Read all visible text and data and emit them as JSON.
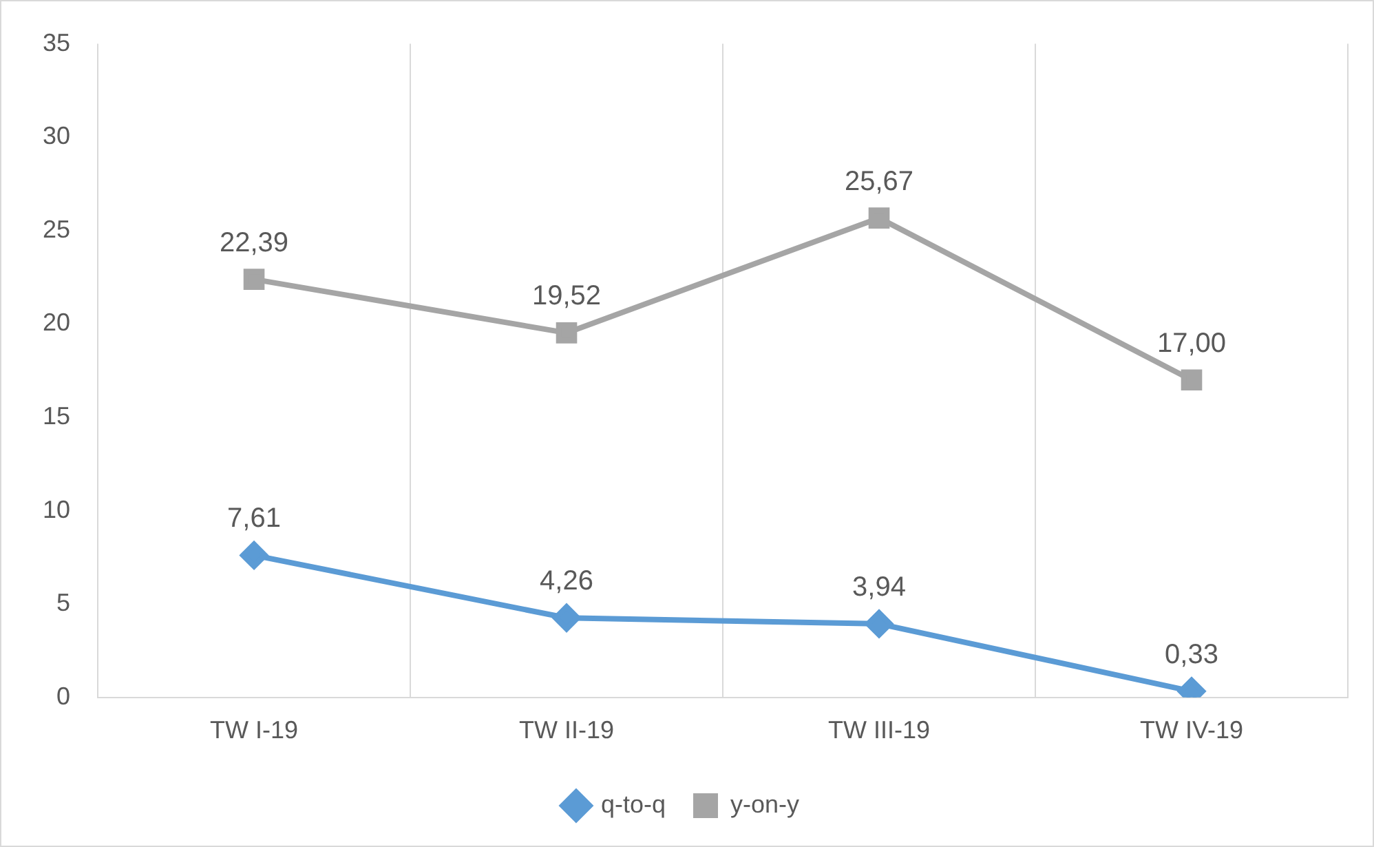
{
  "chart_data": {
    "type": "line",
    "categories": [
      "TW I-19",
      "TW II-19",
      "TW III-19",
      "TW IV-19"
    ],
    "series": [
      {
        "name": "q-to-q",
        "color": "#5b9bd5",
        "marker": "diamond",
        "values": [
          7.61,
          4.26,
          3.94,
          0.33
        ],
        "value_labels": [
          "7,61",
          "4,26",
          "3,94",
          "0,33"
        ]
      },
      {
        "name": "y-on-y",
        "color": "#a5a5a5",
        "marker": "square",
        "values": [
          22.39,
          19.52,
          25.67,
          17.0
        ],
        "value_labels": [
          "22,39",
          "19,52",
          "25,67",
          "17,00"
        ]
      }
    ],
    "ylim": [
      0,
      35
    ],
    "yticks": [
      0,
      5,
      10,
      15,
      20,
      25,
      30,
      35
    ],
    "grid": "x",
    "legend": "bottom",
    "line_style": "solid"
  }
}
